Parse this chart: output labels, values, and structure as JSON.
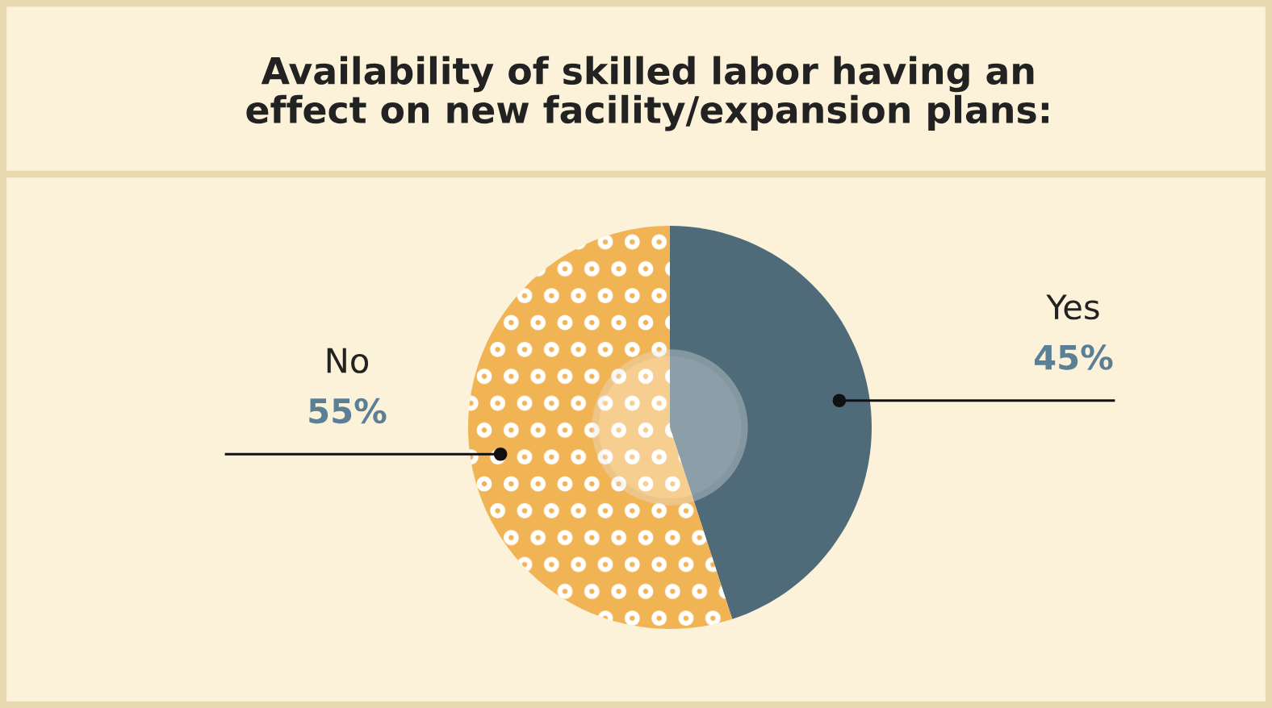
{
  "chart_data": {
    "type": "donut",
    "title": "Availability of skilled labor having an\neffect on new facility/expansion plans:",
    "categories": [
      "Yes",
      "No"
    ],
    "values": [
      45,
      55
    ],
    "colors": [
      "#4f6b7a",
      "#f0b455"
    ],
    "value_labels": [
      "45%",
      "55%"
    ],
    "legend": false
  }
}
